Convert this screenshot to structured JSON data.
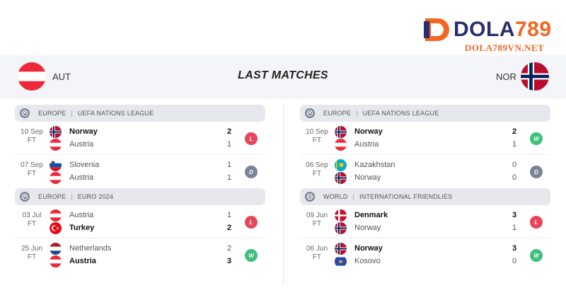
{
  "brand": {
    "name_part1": "DOLA",
    "name_part2": "789",
    "url": "DOLA789VN.NET"
  },
  "header": {
    "home_code": "AUT",
    "away_code": "NOR",
    "title": "LAST MATCHES"
  },
  "colors": {
    "loss": "#e8455d",
    "win": "#3fc07a",
    "draw": "#7b8496"
  },
  "left": {
    "groups": [
      {
        "region": "EUROPE",
        "competition": "UEFA NATIONS LEAGUE",
        "icon": "competition-ball-icon",
        "matches": [
          {
            "date": "10 Sep",
            "status": "FT",
            "team1": "Norway",
            "team2": "Austria",
            "score1": "2",
            "score2": "1",
            "result": "L",
            "flag1": "norway",
            "flag2": "austria",
            "winner": 1
          },
          {
            "date": "07 Sep",
            "status": "FT",
            "team1": "Slovenia",
            "team2": "Austria",
            "score1": "1",
            "score2": "1",
            "result": "D",
            "flag1": "slovenia",
            "flag2": "austria",
            "winner": 0
          }
        ]
      },
      {
        "region": "EUROPE",
        "competition": "EURO 2024",
        "icon": "competition-ball-icon",
        "matches": [
          {
            "date": "03 Jul",
            "status": "FT",
            "team1": "Austria",
            "team2": "Turkey",
            "score1": "1",
            "score2": "2",
            "result": "L",
            "flag1": "austria",
            "flag2": "turkey",
            "winner": 2
          },
          {
            "date": "25 Jun",
            "status": "FT",
            "team1": "Netherlands",
            "team2": "Austria",
            "score1": "2",
            "score2": "3",
            "result": "W",
            "flag1": "netherlands",
            "flag2": "austria",
            "winner": 2
          }
        ]
      }
    ]
  },
  "right": {
    "groups": [
      {
        "region": "EUROPE",
        "competition": "UEFA NATIONS LEAGUE",
        "icon": "competition-ball-icon",
        "matches": [
          {
            "date": "10 Sep",
            "status": "FT",
            "team1": "Norway",
            "team2": "Austria",
            "score1": "2",
            "score2": "1",
            "result": "W",
            "flag1": "norway",
            "flag2": "austria",
            "winner": 1
          },
          {
            "date": "06 Sep",
            "status": "FT",
            "team1": "Kazakhstan",
            "team2": "Norway",
            "score1": "0",
            "score2": "0",
            "result": "D",
            "flag1": "kazakhstan",
            "flag2": "norway",
            "winner": 0
          }
        ]
      },
      {
        "region": "WORLD",
        "competition": "INTERNATIONAL FRIENDLIES",
        "icon": "globe-icon",
        "matches": [
          {
            "date": "09 Jun",
            "status": "FT",
            "team1": "Denmark",
            "team2": "Norway",
            "score1": "3",
            "score2": "1",
            "result": "L",
            "flag1": "denmark",
            "flag2": "norway",
            "winner": 1
          },
          {
            "date": "06 Jun",
            "status": "FT",
            "team1": "Norway",
            "team2": "Kosovo",
            "score1": "3",
            "score2": "0",
            "result": "W",
            "flag1": "norway",
            "flag2": "kosovo",
            "winner": 1
          }
        ]
      }
    ]
  }
}
